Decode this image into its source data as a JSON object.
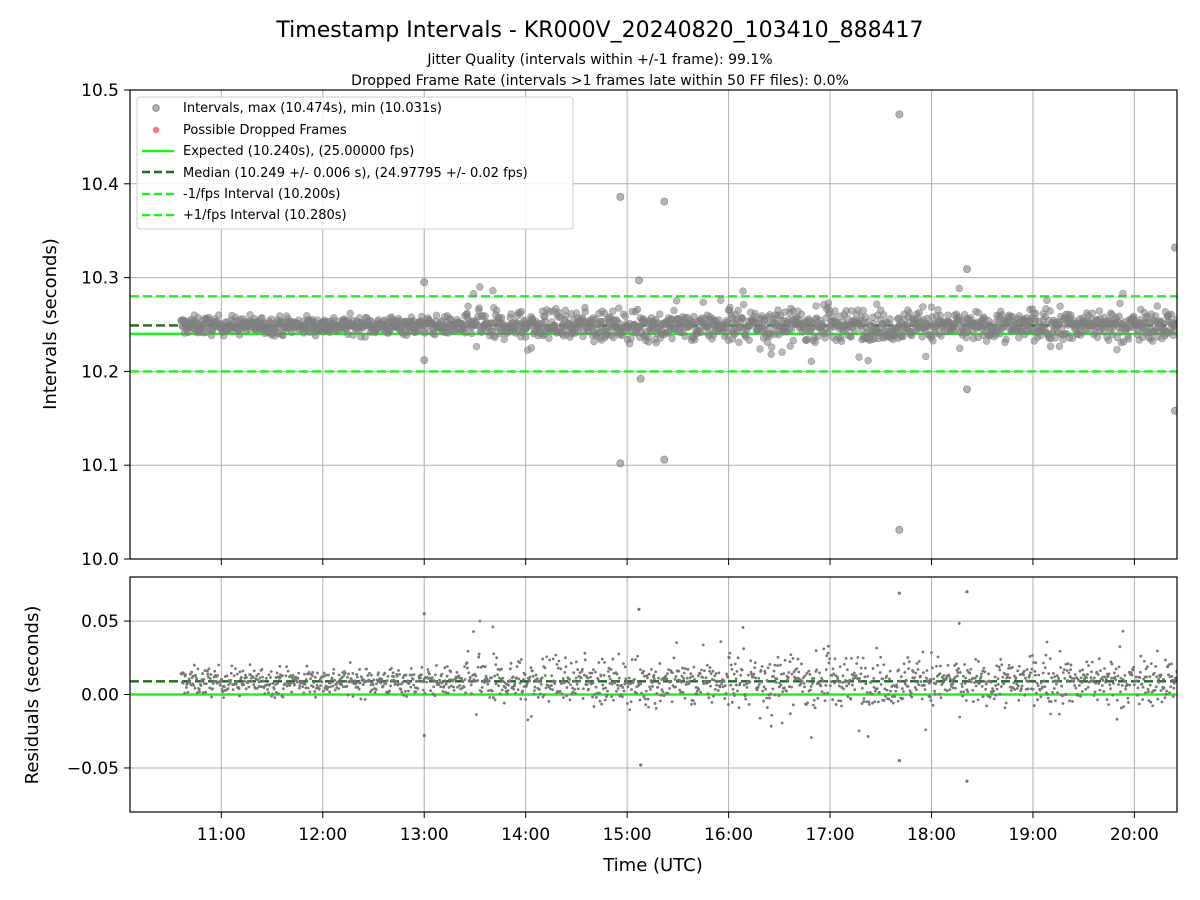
{
  "figure": {
    "title": "Timestamp Intervals - KR000V_20240820_103410_888417",
    "subtitle_1": "Jitter Quality (intervals within +/-1 frame): 99.1%",
    "subtitle_2": "Dropped Frame Rate (intervals >1 frames late within 50 FF files): 0.0%",
    "xlabel": "Time (UTC)"
  },
  "colors": {
    "points": "#808080",
    "dropped": "#ff6666",
    "expected": "#22ee22",
    "median": "#1a6b1a",
    "band": "#22ee22",
    "grid": "#b0b0b0"
  },
  "chart_data": [
    {
      "type": "scatter",
      "ylabel": "Intervals (seconds)",
      "ylim": [
        10.0,
        10.5
      ],
      "xlim_hours": [
        10.1,
        20.42
      ],
      "yticks": [
        "10.0",
        "10.1",
        "10.2",
        "10.3",
        "10.4",
        "10.5"
      ],
      "grid": true,
      "legend_position": "top-left",
      "series": [
        {
          "name": "Intervals, max (10.474s), min (10.031s)",
          "kind": "points",
          "color": "#808080",
          "max": 10.474,
          "min": 10.031
        },
        {
          "name": "Possible Dropped Frames",
          "kind": "points",
          "color": "#ff6666",
          "values": []
        }
      ],
      "lines": [
        {
          "name": "Expected (10.240s), (25.00000 fps)",
          "y": 10.24,
          "style": "solid",
          "color": "#22ee22"
        },
        {
          "name": "Median (10.249 +/- 0.006 s), (24.97795 +/- 0.02 fps)",
          "y": 10.249,
          "style": "dashed",
          "color": "#1a6b1a"
        },
        {
          "name": "-1/fps Interval (10.200s)",
          "y": 10.2,
          "style": "dashed",
          "color": "#22ee22"
        },
        {
          "name": "+1/fps Interval (10.280s)",
          "y": 10.28,
          "style": "dashed",
          "color": "#22ee22"
        }
      ],
      "outliers": [
        {
          "t": "13:00",
          "y": 10.295
        },
        {
          "t": "13:00",
          "y": 10.212
        },
        {
          "t": "14:56",
          "y": 10.386
        },
        {
          "t": "14:56",
          "y": 10.102
        },
        {
          "t": "15:22",
          "y": 10.381
        },
        {
          "t": "15:22",
          "y": 10.106
        },
        {
          "t": "15:07",
          "y": 10.297
        },
        {
          "t": "15:08",
          "y": 10.192
        },
        {
          "t": "17:41",
          "y": 10.474
        },
        {
          "t": "17:41",
          "y": 10.031
        },
        {
          "t": "18:21",
          "y": 10.309
        },
        {
          "t": "18:21",
          "y": 10.181
        },
        {
          "t": "20:24",
          "y": 10.332
        },
        {
          "t": "20:24",
          "y": 10.158
        }
      ]
    },
    {
      "type": "scatter",
      "ylabel": "Residuals (seconds)",
      "ylim": [
        -0.08,
        0.08
      ],
      "xlim_hours": [
        10.1,
        20.42
      ],
      "yticks": [
        "0.05",
        "0.00",
        "−0.05"
      ],
      "ytick_values": [
        0.05,
        0.0,
        -0.05
      ],
      "xticks": [
        "11:00",
        "12:00",
        "13:00",
        "14:00",
        "15:00",
        "16:00",
        "17:00",
        "18:00",
        "19:00",
        "20:00"
      ],
      "grid": true,
      "lines": [
        {
          "name": "Median offset",
          "y": 0.009,
          "style": "dashed",
          "color": "#1a6b1a"
        },
        {
          "name": "Zero",
          "y": 0.0,
          "style": "solid",
          "color": "#22ee22"
        }
      ],
      "outliers": [
        {
          "t": "13:00",
          "y": 0.055
        },
        {
          "t": "13:00",
          "y": -0.028
        },
        {
          "t": "15:07",
          "y": 0.058
        },
        {
          "t": "15:08",
          "y": -0.048
        },
        {
          "t": "17:41",
          "y": 0.069
        },
        {
          "t": "17:41",
          "y": -0.045
        },
        {
          "t": "18:21",
          "y": 0.07
        },
        {
          "t": "18:21",
          "y": -0.059
        }
      ]
    }
  ]
}
